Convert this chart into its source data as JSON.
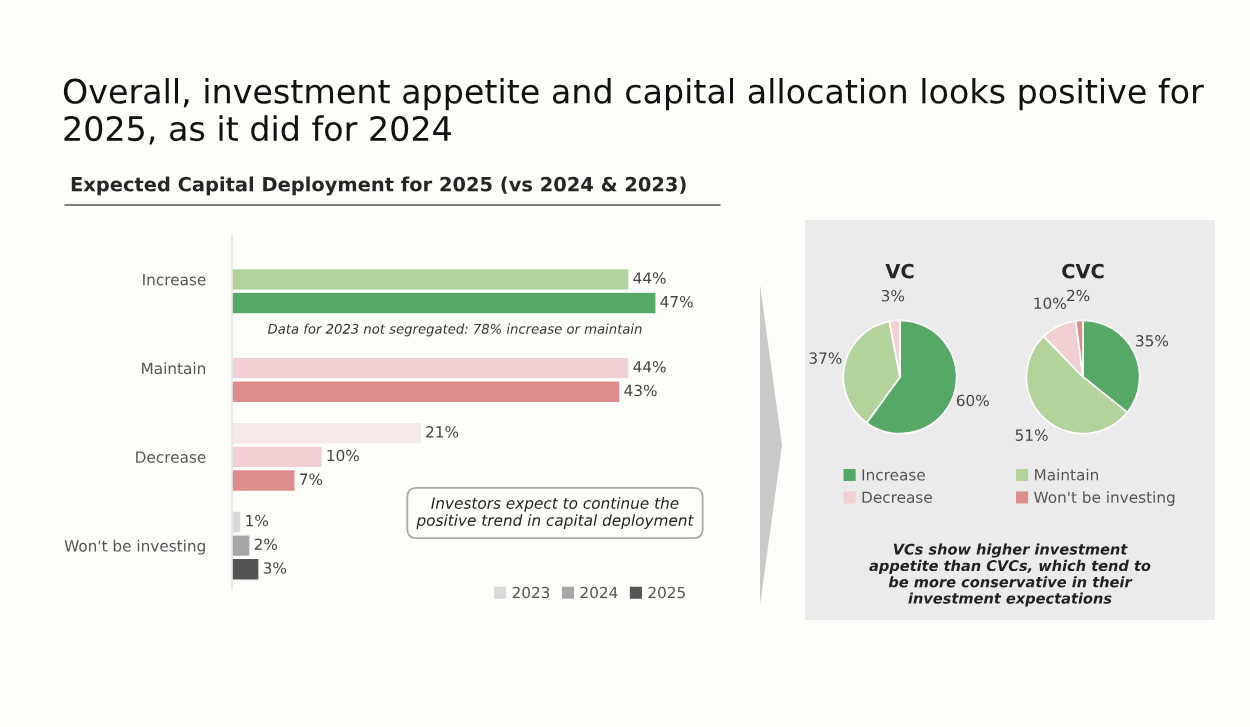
{
  "chart_data": [
    {
      "type": "bar",
      "orientation": "horizontal",
      "title": "Overall, investment appetite and capital allocation looks positive for 2025, as it did for 2024",
      "subtitle": "Expected Capital Deployment for 2025 (vs 2024 & 2023)",
      "categories": [
        "Increase",
        "Maintain",
        "Decrease",
        "Won't be investing"
      ],
      "series": [
        {
          "name": "2023",
          "color": "#d9d9d9",
          "colors": [
            "#d9d9d9",
            "#d9d9d9",
            "#f7e9e8",
            "#d9d9d9"
          ],
          "values": [
            null,
            null,
            21,
            1
          ],
          "value_labels": [
            null,
            null,
            "21%",
            "1%"
          ]
        },
        {
          "name": "2024",
          "color": "#a6a6a6",
          "colors": [
            "#b3d39c",
            "#f0d0d2",
            "#f0d0d2",
            "#a6a6a6"
          ],
          "values": [
            44,
            44,
            10,
            2
          ],
          "value_labels": [
            "44%",
            "44%",
            "10%",
            "2%"
          ]
        },
        {
          "name": "2025",
          "color": "#555555",
          "colors": [
            "#55a865",
            "#dd8e8c",
            "#dd8e8c",
            "#555555"
          ],
          "values": [
            47,
            43,
            7,
            3
          ],
          "value_labels": [
            "47%",
            "43%",
            "7%",
            "3%"
          ]
        }
      ],
      "tick_labels": "y",
      "legend": "bottom right",
      "annotations": [
        "Data for 2023 not segregated: 78% increase or maintain",
        "Investors expect to continue the positive trend in capital deployment"
      ]
    },
    {
      "type": "pie",
      "title": "VC",
      "values": [
        60,
        37,
        3,
        0
      ],
      "value_labels": [
        "60%",
        "37%",
        "3%",
        null
      ],
      "colors": [
        "#55a865",
        "#b3d39c",
        "#f0d0d2",
        "#dd8e8c"
      ]
    },
    {
      "type": "pie",
      "title": "CVC",
      "categories": [
        "Increase",
        "Maintain",
        "Decrease",
        "Won't be investing"
      ],
      "values": [
        35,
        51,
        10,
        2
      ],
      "value_labels": [
        "35%",
        "51%",
        "10%",
        "2%"
      ],
      "colors": [
        "#55a865",
        "#b3d39c",
        "#f0d0d2",
        "#dd8e8c"
      ],
      "legend": "bottom",
      "annotations": [
        "VCs show higher investment appetite than CVCs, which tend to be more conservative in their investment expectations"
      ]
    }
  ]
}
